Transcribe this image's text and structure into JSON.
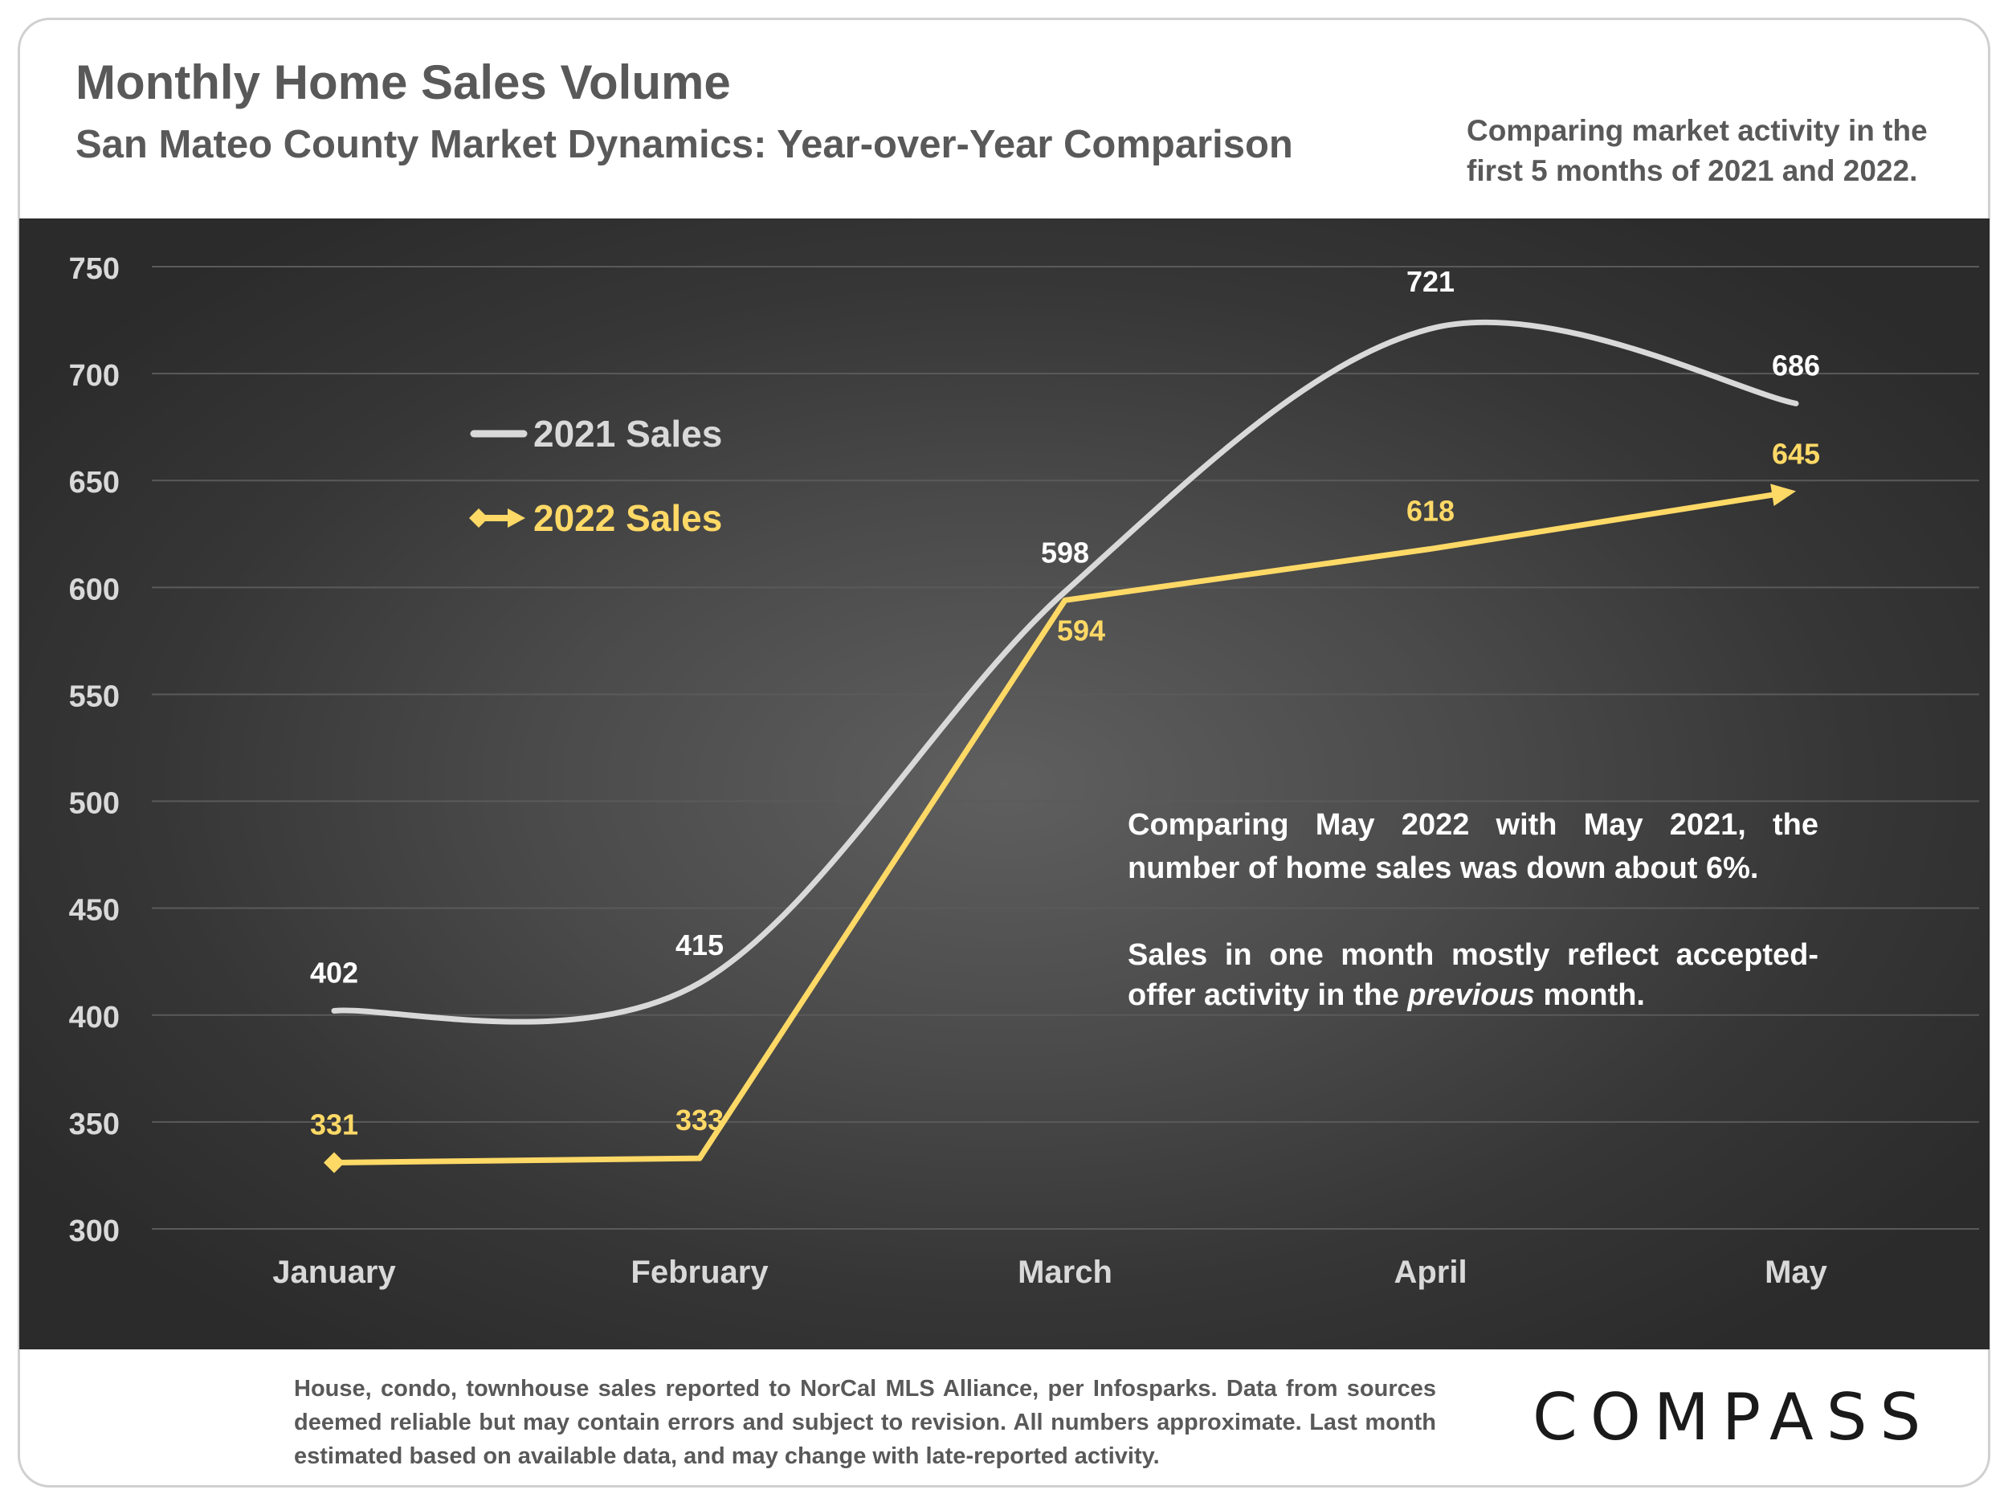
{
  "header": {
    "title": "Monthly Home Sales Volume",
    "subtitle": "San Mateo County Market Dynamics: Year-over-Year Comparison",
    "note_line1": "Comparing market activity in the",
    "note_line2": "first 5 months of 2021 and 2022."
  },
  "annotation": {
    "para1": "Comparing May 2022 with May 2021, the number of home sales was down about 6%.",
    "para2_before": "Sales in one month mostly reflect accepted-offer activity in the ",
    "para2_italic": "previous",
    "para2_after": " month."
  },
  "footer": {
    "text": "House, condo, townhouse sales reported to NorCal MLS Alliance, per Infosparks. Data from sources deemed reliable but may contain errors and subject to revision. All numbers approximate. Last month estimated based on available data, and may change with late-reported activity."
  },
  "logo": {
    "text": "COMPASS"
  },
  "colors": {
    "series_2021": "#d9d9d9",
    "series_2022": "#ffd966",
    "axis_text": "#d9d9d9",
    "grid": "#5a5a5a"
  },
  "chart_data": {
    "type": "line",
    "categories": [
      "January",
      "February",
      "March",
      "April",
      "May"
    ],
    "ylim": [
      300,
      750
    ],
    "yticks": [
      300,
      350,
      400,
      450,
      500,
      550,
      600,
      650,
      700,
      750
    ],
    "grid": true,
    "legend_position": "upper-left",
    "series": [
      {
        "name": "2021 Sales",
        "values": [
          402,
          415,
          598,
          721,
          686
        ],
        "smooth": true,
        "marker": "none"
      },
      {
        "name": "2022 Sales",
        "values": [
          331,
          333,
          594,
          618,
          645
        ],
        "smooth": false,
        "marker": "diamond-start-arrow-end"
      }
    ]
  }
}
